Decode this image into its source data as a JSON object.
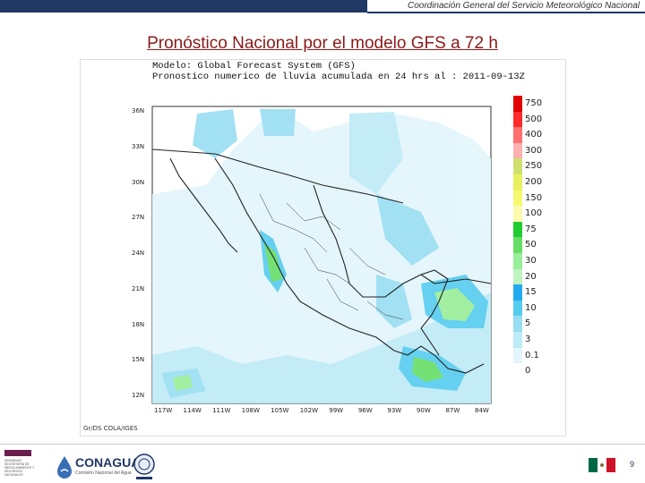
{
  "header": {
    "organization": "Coordinación General del Servicio Meteorológico Nacional"
  },
  "slide": {
    "title": "Pronóstico Nacional por el modelo GFS a 72 h",
    "page_number": "9"
  },
  "map": {
    "model_line": "Modelo: Global Forecast System (GFS)",
    "product_line": "Pronostico numerico de lluvia acumulada en 24 hrs al : 2011-09-13Z",
    "credit": "Gr/DS  COLA/IGES",
    "lat_labels": [
      "36N",
      "33N",
      "30N",
      "27N",
      "24N",
      "21N",
      "18N",
      "15N",
      "12N"
    ],
    "lon_labels": [
      "117W",
      "114W",
      "111W",
      "108W",
      "105W",
      "102W",
      "99W",
      "96W",
      "93W",
      "90W",
      "87W",
      "84W"
    ],
    "legend": [
      {
        "label": "750",
        "color": "#e00000"
      },
      {
        "label": "500",
        "color": "#ff2a2a"
      },
      {
        "label": "400",
        "color": "#ff7070"
      },
      {
        "label": "300",
        "color": "#ffb0b0"
      },
      {
        "label": "250",
        "color": "#cfe070"
      },
      {
        "label": "200",
        "color": "#e8f060"
      },
      {
        "label": "150",
        "color": "#f6f870"
      },
      {
        "label": "100",
        "color": "#fbfbb0"
      },
      {
        "label": "75",
        "color": "#22cc33"
      },
      {
        "label": "50",
        "color": "#66dd66"
      },
      {
        "label": "30",
        "color": "#99ee99"
      },
      {
        "label": "20",
        "color": "#bff3bf"
      },
      {
        "label": "15",
        "color": "#22aaee"
      },
      {
        "label": "10",
        "color": "#55ccee"
      },
      {
        "label": "5",
        "color": "#99ddf2"
      },
      {
        "label": "3",
        "color": "#bdebf6"
      },
      {
        "label": "0.1",
        "color": "#e2f6fb"
      },
      {
        "label": "0",
        "color": "#ffffff"
      }
    ]
  },
  "footer": {
    "brand": "CONAGUA",
    "brand_sub": "Comisión Nacional del Agua",
    "gov_text": "SEMARNAT SECRETARÍA DE MEDIO AMBIENTE Y RECURSOS NATURALES"
  }
}
